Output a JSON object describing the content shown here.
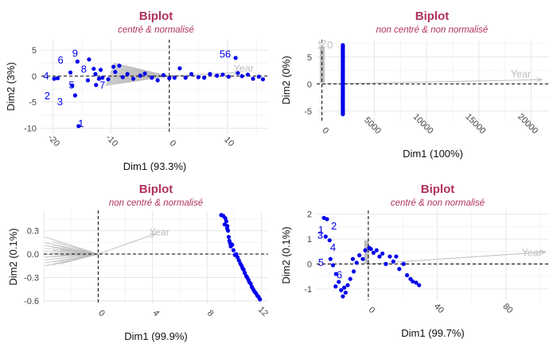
{
  "colors": {
    "title": "#b03060",
    "points": "#0000ee",
    "arrows": "#bebebe",
    "grid": "#e6e6e6"
  },
  "chart_data": [
    {
      "type": "scatter",
      "title": "Biplot",
      "subtitle": "centré &  normalisé",
      "xlabel": "Dim1 (93.3%)",
      "ylabel": "Dim2 (3%)",
      "xlim": [
        -22,
        17
      ],
      "ylim": [
        -11,
        7
      ],
      "xticks": [
        -20,
        -10,
        0,
        10
      ],
      "yticks": [
        -10,
        -5,
        0,
        5
      ],
      "grid": true,
      "reference_lines": [
        0,
        0
      ],
      "observation_labels": [
        {
          "label": "1",
          "x": -15.2,
          "y": -9.2
        },
        {
          "label": "3",
          "x": -18.8,
          "y": -5.0
        },
        {
          "label": "2",
          "x": -21.0,
          "y": -3.8
        },
        {
          "label": "4",
          "x": -21.2,
          "y": 0.0
        },
        {
          "label": "5",
          "x": -16.8,
          "y": -1.8
        },
        {
          "label": "6",
          "x": -18.7,
          "y": 3.0
        },
        {
          "label": "7",
          "x": -11.5,
          "y": -1.8
        },
        {
          "label": "8",
          "x": -14.7,
          "y": 1.3
        },
        {
          "label": "9",
          "x": -16.2,
          "y": 4.3
        },
        {
          "label": "56",
          "x": 9.6,
          "y": 4.2
        }
      ],
      "points": {
        "x": [
          -15.6,
          -16.2,
          -19.2,
          -19.8,
          -16.7,
          -17.0,
          -15.8,
          -13.8,
          -12.7,
          -12.1,
          -13.0,
          -11.8,
          -11.5,
          -10.5,
          -9.3,
          -8.6,
          -8.0,
          -7.2,
          -6.2,
          -5.0,
          -4.2,
          -3.0,
          -2.0,
          -1.0,
          0.0,
          0.9,
          1.8,
          2.8,
          3.8,
          5.0,
          6.0,
          7.0,
          8.2,
          9.2,
          10.2,
          11.4,
          11.8,
          12.5,
          13.5,
          14.4,
          15.4,
          16.1,
          -14.0,
          -12.6,
          -9.6
        ],
        "y": [
          -9.6,
          -3.7,
          -0.4,
          -0.5,
          -1.8,
          0.7,
          2.8,
          3.2,
          0.4,
          -0.5,
          1.4,
          1.2,
          -0.3,
          -0.6,
          0.8,
          2.0,
          -0.2,
          0.4,
          -0.5,
          0.1,
          0.5,
          -0.3,
          -0.8,
          0.2,
          -0.4,
          -0.3,
          1.5,
          -0.3,
          0.4,
          -0.2,
          -0.3,
          0.4,
          0.1,
          0.3,
          -0.1,
          3.5,
          0.6,
          0.0,
          0.3,
          -0.5,
          -0.1,
          -0.6,
          -0.8,
          -1.7,
          1.8
        ]
      },
      "variables": {
        "labels": [
          "Year"
        ],
        "label_positions": [
          {
            "x": 12.8,
            "y": 1.4
          }
        ],
        "fan_from": [
          -9.5,
          2.5
        ],
        "fan_to": [
          -11.0,
          -1.8
        ],
        "fan_count": 24,
        "year_arrow_end": [
          12.0,
          0.7
        ]
      }
    },
    {
      "type": "scatter",
      "title": "Biplot",
      "subtitle": "non centré & non normalisé",
      "xlabel": "Dim1 (100%)",
      "ylabel": "Dim2 (0%)",
      "xlim": [
        -500,
        21700
      ],
      "ylim": [
        -6.8,
        8.2
      ],
      "xticks": [
        0,
        5000,
        10000,
        15000,
        20000
      ],
      "yticks": [
        -5,
        0,
        5
      ],
      "grid": true,
      "reference_lines": [
        0,
        0
      ],
      "observation_labels": [
        {
          "label": "1",
          "x": -200,
          "y": 7.2
        },
        {
          "label": "2",
          "x": 150,
          "y": 7.4
        },
        {
          "label": "0",
          "x": 760,
          "y": 7.2
        }
      ],
      "points": {
        "column_x": 2000,
        "y_from": -5.6,
        "y_to": 7.2,
        "count": 60
      },
      "variables": {
        "labels": [
          "Year"
        ],
        "label_positions": [
          {
            "x": 19000,
            "y": 1.8
          }
        ],
        "gray_x": 30,
        "gray_y_from": 0.2,
        "gray_y_to": 6.8,
        "year_arrow_end": [
          21000,
          0.8
        ]
      }
    },
    {
      "type": "scatter",
      "title": "Biplot",
      "subtitle": "non centré &  normalisé",
      "xlabel": "Dim1 (99.9%)",
      "ylabel": "Dim2 (0.1%)",
      "xlim": [
        -4.0,
        12.5
      ],
      "ylim": [
        -0.63,
        0.56
      ],
      "xticks": [
        0,
        4,
        8,
        12
      ],
      "yticks": [
        -0.6,
        -0.3,
        0.0,
        0.3
      ],
      "grid": true,
      "reference_lines": [
        0,
        0
      ],
      "observation_labels": [],
      "points": {
        "x": [
          9.05,
          9.2,
          9.35,
          9.42,
          9.5,
          9.55,
          9.48,
          9.6,
          9.65,
          9.7,
          9.75,
          9.85,
          9.95,
          10.05,
          10.15,
          10.25,
          10.35,
          10.45,
          10.55,
          10.62,
          10.7,
          10.78,
          10.88,
          10.96,
          11.05,
          11.12,
          11.22,
          11.3,
          11.4,
          11.5,
          11.6,
          11.7,
          11.8,
          11.9,
          9.3
        ],
        "y": [
          0.5,
          0.49,
          0.46,
          0.42,
          0.36,
          0.3,
          0.33,
          0.22,
          0.17,
          0.14,
          0.1,
          0.12,
          0.05,
          -0.01,
          0.0,
          -0.04,
          -0.08,
          -0.12,
          -0.15,
          -0.18,
          -0.2,
          -0.24,
          -0.28,
          -0.3,
          -0.33,
          -0.36,
          -0.38,
          -0.42,
          -0.45,
          -0.48,
          -0.5,
          -0.53,
          -0.55,
          -0.58,
          0.38
        ]
      },
      "variables": {
        "labels": [
          "Year"
        ],
        "label_positions": [
          {
            "x": 4.5,
            "y": 0.28
          }
        ],
        "gray_x_from": -3.9,
        "gray_x_to": -2.8,
        "gray_y_from": -0.15,
        "gray_y_to": 0.16,
        "fan_center": [
          0.0,
          0.0
        ],
        "year_arrow_end": [
          4.2,
          0.26
        ]
      }
    },
    {
      "type": "scatter",
      "title": "Biplot",
      "subtitle": "centré & non normalisé",
      "xlabel": "Dim1 (99.7%)",
      "ylabel": "Dim2 (0.1%)",
      "xlim": [
        -30,
        105
      ],
      "ylim": [
        -1.45,
        2.15
      ],
      "xticks": [
        0,
        40,
        80
      ],
      "yticks": [
        -1,
        0,
        1,
        2
      ],
      "grid": true,
      "reference_lines": [
        0,
        0
      ],
      "observation_labels": [
        {
          "label": "1",
          "x": -27.5,
          "y": 1.35
        },
        {
          "label": "2",
          "x": -20.0,
          "y": 1.52
        },
        {
          "label": "3",
          "x": -28.0,
          "y": 1.15
        },
        {
          "label": "4",
          "x": -20.5,
          "y": 0.65
        },
        {
          "label": "5",
          "x": -27.5,
          "y": 0.05
        },
        {
          "label": "6",
          "x": -16.8,
          "y": -0.45
        }
      ],
      "points": {
        "x": [
          -25.8,
          -24.0,
          -24.8,
          -22.5,
          -22.0,
          -20.5,
          -18.8,
          -17.2,
          -15.8,
          -14.8,
          -13.2,
          -12.0,
          -10.5,
          -8.5,
          -6.8,
          -5.2,
          -3.2,
          -1.8,
          0.5,
          1.5,
          3.0,
          4.8,
          6.5,
          8.2,
          10.2,
          12.5,
          14.5,
          16.2,
          18.0,
          20.5,
          22.5,
          24.5,
          25.8,
          27.8,
          29.5,
          -19.0,
          -14.0,
          -9.0
        ],
        "y": [
          1.85,
          1.8,
          1.1,
          0.95,
          0.2,
          -0.05,
          -0.4,
          -0.72,
          -1.05,
          -1.3,
          -1.15,
          -0.85,
          -0.6,
          -0.3,
          0.05,
          0.35,
          0.2,
          0.55,
          0.65,
          0.6,
          0.45,
          0.55,
          0.3,
          0.42,
          0.0,
          0.3,
          0.1,
          0.3,
          -0.2,
          0.0,
          -0.45,
          -0.6,
          -0.7,
          -0.75,
          -0.85,
          -0.9,
          -0.95,
          0.2
        ]
      },
      "variables": {
        "labels": [
          "Year"
        ],
        "label_positions": [
          {
            "x": 95,
            "y": 0.45
          }
        ],
        "gray_x": -1,
        "gray_y_from": 0.0,
        "gray_y_to": 0.95,
        "year_arrow_end": [
          103,
          0.48
        ]
      }
    }
  ]
}
